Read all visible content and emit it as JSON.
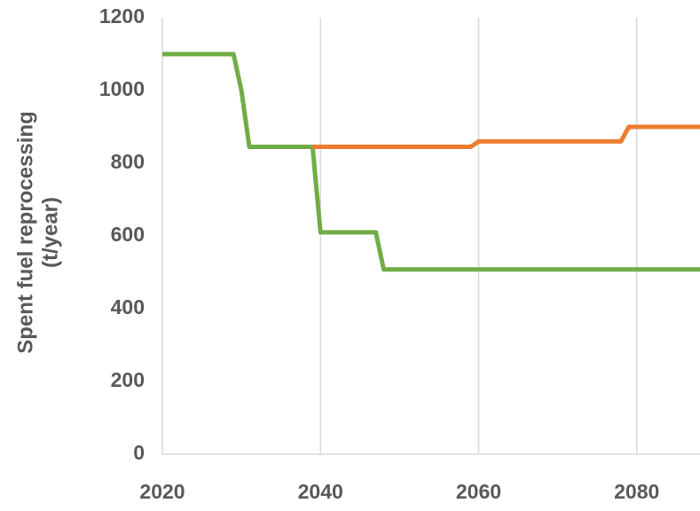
{
  "chart_data": {
    "type": "line",
    "ylabel": [
      "Spent fuel reprocessing",
      "(t/year)"
    ],
    "series": [
      {
        "color": "#70ad47",
        "x": [
          2020,
          2029,
          2030,
          2031,
          2039,
          2040,
          2047,
          2048,
          2088
        ],
        "values": [
          1100,
          1100,
          1000,
          845,
          845,
          610,
          610,
          508,
          508
        ]
      },
      {
        "color": "#ed7d31",
        "x": [
          2039,
          2059,
          2060,
          2078,
          2079,
          2088
        ],
        "values": [
          845,
          845,
          860,
          860,
          900,
          900
        ]
      }
    ],
    "xlim": [
      2020,
      2088
    ],
    "xticks": [
      2020,
      2040,
      2060,
      2080
    ],
    "ylim": [
      0,
      1200
    ],
    "yticks": [
      0,
      200,
      400,
      600,
      800,
      1000,
      1200
    ],
    "grid": true
  }
}
